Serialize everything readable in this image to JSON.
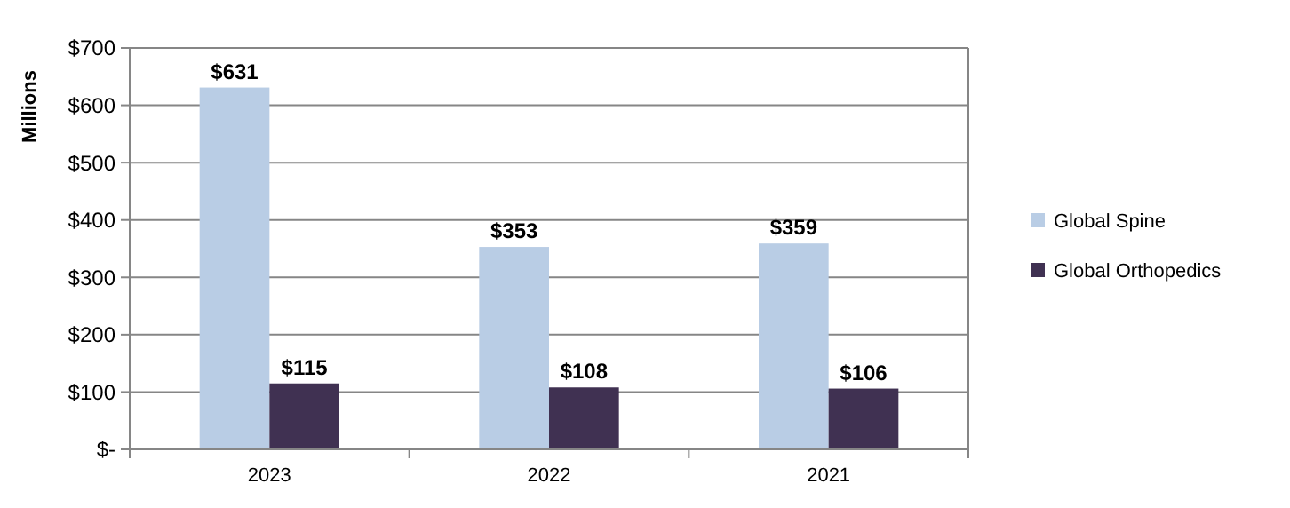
{
  "chart_data": {
    "type": "bar",
    "ylabel": "Millions",
    "categories": [
      "2023",
      "2022",
      "2021"
    ],
    "series": [
      {
        "name": "Global Spine",
        "color": "#b9cde5",
        "values": [
          631,
          353,
          359
        ],
        "value_labels": [
          "$631",
          "$353",
          "$359"
        ]
      },
      {
        "name": "Global Orthopedics",
        "color": "#403152",
        "values": [
          115,
          108,
          106
        ],
        "value_labels": [
          "$115",
          "$108",
          "$106"
        ]
      }
    ],
    "ylim": [
      0,
      700
    ],
    "yticks": [
      {
        "value": 0,
        "label": "$-"
      },
      {
        "value": 100,
        "label": "$100"
      },
      {
        "value": 200,
        "label": "$200"
      },
      {
        "value": 300,
        "label": "$300"
      },
      {
        "value": 400,
        "label": "$400"
      },
      {
        "value": 500,
        "label": "$500"
      },
      {
        "value": 600,
        "label": "$600"
      },
      {
        "value": 700,
        "label": "$700"
      }
    ],
    "grid": "y",
    "legend": "right"
  }
}
